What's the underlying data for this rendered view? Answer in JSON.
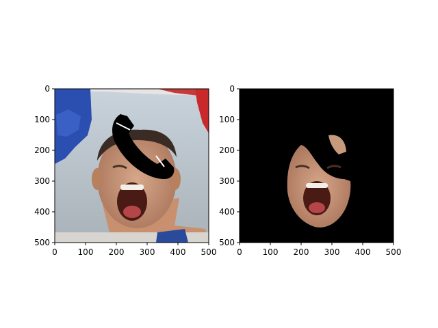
{
  "chart_data": [
    {
      "type": "image",
      "title": "",
      "xlabel": "",
      "ylabel": "",
      "xlim": [
        0,
        500
      ],
      "ylim": [
        500,
        0
      ],
      "xticks": [
        "0",
        "100",
        "200",
        "300",
        "400",
        "500"
      ],
      "yticks": [
        "0",
        "100",
        "200",
        "300",
        "400",
        "500"
      ],
      "content": "photo of a man shouting with a black phone-handset shaped occlusion over his forehead"
    },
    {
      "type": "image",
      "title": "",
      "xlabel": "",
      "ylabel": "",
      "xlim": [
        0,
        500
      ],
      "ylim": [
        500,
        0
      ],
      "xticks": [
        "0",
        "100",
        "200",
        "300",
        "400",
        "500"
      ],
      "yticks": [
        "0",
        "100",
        "200",
        "300",
        "400",
        "500"
      ],
      "content": "segmented face region on black background with occluded area removed"
    }
  ]
}
